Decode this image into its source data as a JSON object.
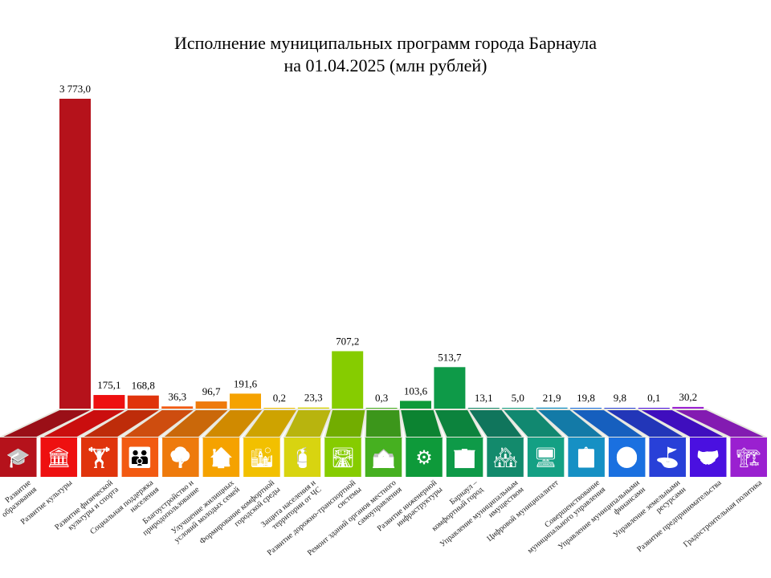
{
  "chart_data": {
    "type": "bar",
    "title": "Исполнение муниципальных программ города Барнаула",
    "subtitle": "на 01.04.2025 (млн рублей)",
    "xlabel": "",
    "ylabel": "",
    "grid": false,
    "legend": "none",
    "ylim": [
      0,
      3773.0
    ],
    "categories": [
      "Развитие\nобразования",
      "Развитие культуры",
      "Развитие физической\nкультуры и спорта",
      "Социальная поддержка\nнаселения",
      "Благоустройство и\nприродопользование",
      "Улучшение жилищных\nусловий молодых семей",
      "Формирование комфортной\nгородской среды",
      "Защита населения и\nтерритории от ЧС",
      "Развитие дорожно-транспортной\nсистемы",
      "Ремонт зданий органов местного\nсамоуправления",
      "Развитие инженерной\nинфраструктуры",
      "Барнаул –\nкомфортный город",
      "Управление муниципальным\nимуществом",
      "Цифровой муниципалитет",
      "Совершенствование\nмуниципального управления",
      "Управление муниципальными\nфинансами",
      "Управление земельными\nресурсами",
      "Развитие предпринимательства",
      "Градостроительная политика"
    ],
    "values": [
      3773.0,
      175.1,
      168.8,
      36.3,
      96.7,
      191.6,
      0.2,
      23.3,
      707.2,
      0.3,
      103.6,
      513.7,
      13.1,
      5.0,
      21.9,
      19.8,
      9.8,
      0.1,
      30.2
    ],
    "value_labels": [
      "3 773,0",
      "175,1",
      "168,8",
      "36,3",
      "96,7",
      "191,6",
      "0,2",
      "23,3",
      "707,2",
      "0,3",
      "103,6",
      "513,7",
      "13,1",
      "5,0",
      "21,9",
      "19,8",
      "9,8",
      "0,1",
      "30,2"
    ],
    "colors": [
      "#b5121b",
      "#ee1010",
      "#e0340c",
      "#f25a12",
      "#ee7a0c",
      "#f5a200",
      "#f2c000",
      "#d8d410",
      "#86cc00",
      "#46b020",
      "#0e9a3a",
      "#0e9a48",
      "#138a6c",
      "#14a084",
      "#1690c4",
      "#1a70e0",
      "#2840d8",
      "#4a10e0",
      "#9a20d0"
    ],
    "icons": [
      "graduation-cap-icon",
      "column-icon",
      "athlete-icon",
      "family-icon",
      "tree-bench-icon",
      "house-family-icon",
      "city-icon",
      "fire-extinguisher-icon",
      "road-icon",
      "building-icon",
      "engineering-icon",
      "comfortable-city-icon",
      "property-icon",
      "computer-icon",
      "certificate-icon",
      "coins-icon",
      "land-icon",
      "handshake-icon",
      "crane-icon"
    ]
  }
}
